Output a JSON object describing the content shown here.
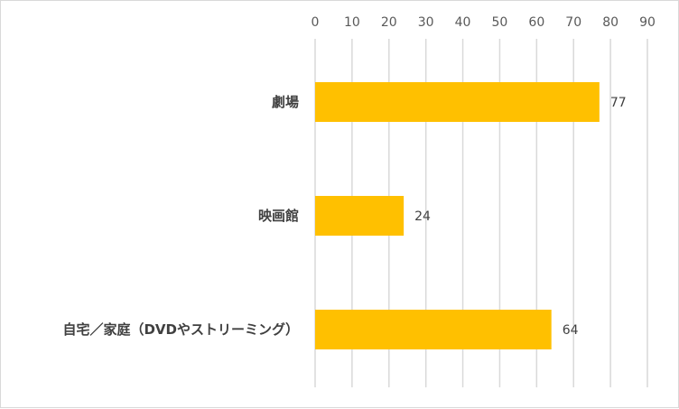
{
  "chart_data": {
    "type": "bar",
    "orientation": "horizontal",
    "categories": [
      "劇場",
      "映画館",
      "自宅／家庭（DVDやストリーミング）"
    ],
    "values": [
      77,
      24,
      64
    ],
    "data_labels": [
      "77",
      "24",
      "64"
    ],
    "xlim": [
      0,
      90
    ],
    "ticks": [
      0,
      10,
      20,
      30,
      40,
      50,
      60,
      70,
      80,
      90
    ],
    "tick_labels": [
      "0",
      "10",
      "20",
      "30",
      "40",
      "50",
      "60",
      "70",
      "80",
      "90"
    ],
    "axis_position": "top",
    "grid": true,
    "legend": "none",
    "bar_color": "#ffc000",
    "grid_color": "#d9d9d9"
  }
}
